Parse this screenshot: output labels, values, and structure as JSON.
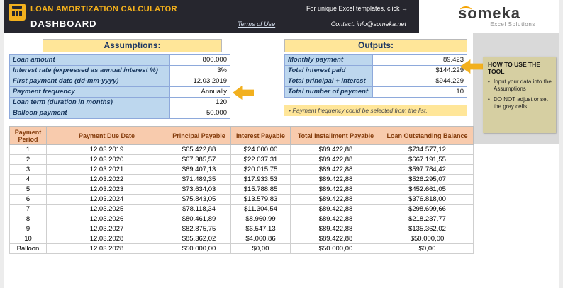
{
  "topbar": {
    "app_title": "LOAN AMORTIZATION CALCULATOR",
    "promo": "For unique Excel templates, click →",
    "dashboard": "DASHBOARD",
    "terms_link": "Terms of Use",
    "contact": "Contact: info@someka.net",
    "logo_text": "someka",
    "logo_subtitle": "Excel Solutions"
  },
  "assumptions": {
    "title": "Assumptions:",
    "rows": [
      {
        "label": "Loan amount",
        "value": "800.000"
      },
      {
        "label": "Interest rate (expressed as annual interest %)",
        "value": "3%"
      },
      {
        "label": "First payment date (dd-mm-yyyy)",
        "value": "12.03.2019"
      },
      {
        "label": "Payment frequency",
        "value": "Annually"
      },
      {
        "label": "Loan term (duration in months)",
        "value": "120"
      },
      {
        "label": "Balloon payment",
        "value": "50.000"
      }
    ]
  },
  "outputs": {
    "title": "Outputs:",
    "rows": [
      {
        "label": "Monthly payment",
        "value": "89.423"
      },
      {
        "label": "Total interest paid",
        "value": "$144.229"
      },
      {
        "label": "Total principal + interest",
        "value": "$944.229"
      },
      {
        "label": "Total number of payment",
        "value": "10"
      }
    ]
  },
  "note": "•  Payment frequency could be selected from the list.",
  "howto": {
    "title": "HOW TO USE THE TOOL",
    "bullets": [
      "Input your data into the Assumptions",
      "DO NOT adjust or set the gray cells."
    ]
  },
  "table": {
    "headers": [
      "Payment Period",
      "Payment Due Date",
      "Principal Payable",
      "Interest Payable",
      "Total Installment Payable",
      "Loan Outstanding Balance"
    ],
    "rows": [
      [
        "1",
        "12.03.2019",
        "$65.422,88",
        "$24.000,00",
        "$89.422,88",
        "$734.577,12"
      ],
      [
        "2",
        "12.03.2020",
        "$67.385,57",
        "$22.037,31",
        "$89.422,88",
        "$667.191,55"
      ],
      [
        "3",
        "12.03.2021",
        "$69.407,13",
        "$20.015,75",
        "$89.422,88",
        "$597.784,42"
      ],
      [
        "4",
        "12.03.2022",
        "$71.489,35",
        "$17.933,53",
        "$89.422,88",
        "$526.295,07"
      ],
      [
        "5",
        "12.03.2023",
        "$73.634,03",
        "$15.788,85",
        "$89.422,88",
        "$452.661,05"
      ],
      [
        "6",
        "12.03.2024",
        "$75.843,05",
        "$13.579,83",
        "$89.422,88",
        "$376.818,00"
      ],
      [
        "7",
        "12.03.2025",
        "$78.118,34",
        "$11.304,54",
        "$89.422,88",
        "$298.699,66"
      ],
      [
        "8",
        "12.03.2026",
        "$80.461,89",
        "$8.960,99",
        "$89.422,88",
        "$218.237,77"
      ],
      [
        "9",
        "12.03.2027",
        "$82.875,75",
        "$6.547,13",
        "$89.422,88",
        "$135.362,02"
      ],
      [
        "10",
        "12.03.2028",
        "$85.362,02",
        "$4.060,86",
        "$89.422,88",
        "$50.000,00"
      ],
      [
        "Balloon",
        "12.03.2028",
        "$50.000,00",
        "$0,00",
        "$50.000,00",
        "$0,00"
      ]
    ]
  },
  "colors": {
    "topbar_bg": "#26262e",
    "accent_yellow": "#f2b01e",
    "section_header_fill": "#ffe699",
    "label_fill": "#bdd7ee",
    "table_header_fill": "#f8cbad",
    "table_header_text": "#843c0c",
    "gray_panel": "#d9d9d9",
    "howto_fill": "#d6cfa2"
  }
}
